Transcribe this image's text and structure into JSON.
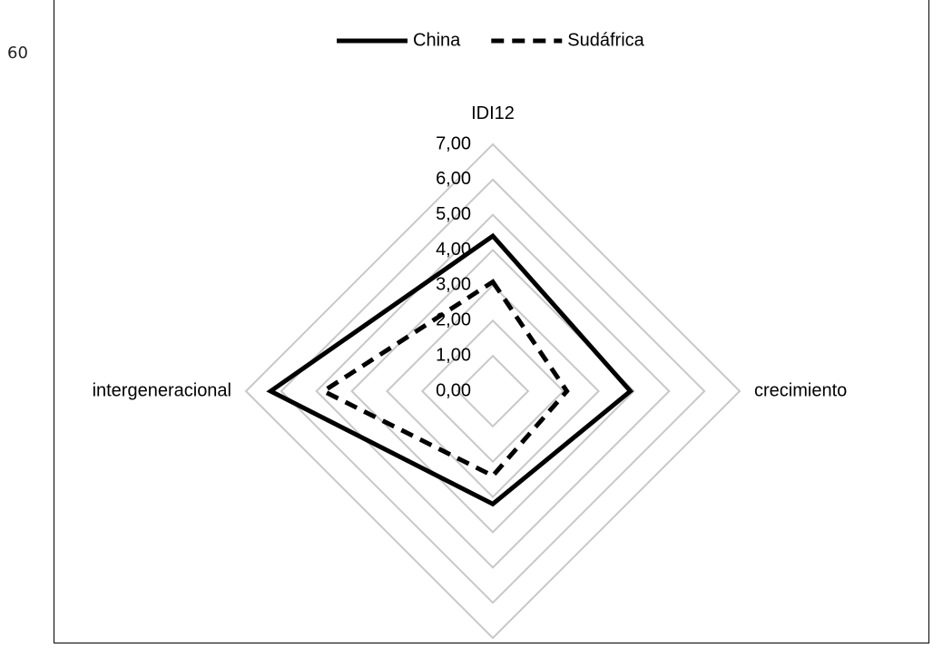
{
  "page": {
    "number": "60"
  },
  "chart_data": {
    "type": "radar",
    "axes": [
      "IDI12",
      "crecimiento",
      "",
      "intergeneracional"
    ],
    "radial_ticks": [
      "0,00",
      "1,00",
      "2,00",
      "3,00",
      "4,00",
      "5,00",
      "6,00",
      "7,00"
    ],
    "rmin": 0,
    "rmax": 7,
    "grid": true,
    "legend_position": "top",
    "series": [
      {
        "name": "China",
        "values": [
          4.4,
          3.9,
          3.2,
          6.3
        ],
        "color": "#000000",
        "style": "solid"
      },
      {
        "name": "Sudáfrica",
        "values": [
          3.1,
          2.1,
          2.4,
          4.8
        ],
        "color": "#000000",
        "style": "dashed"
      }
    ]
  }
}
